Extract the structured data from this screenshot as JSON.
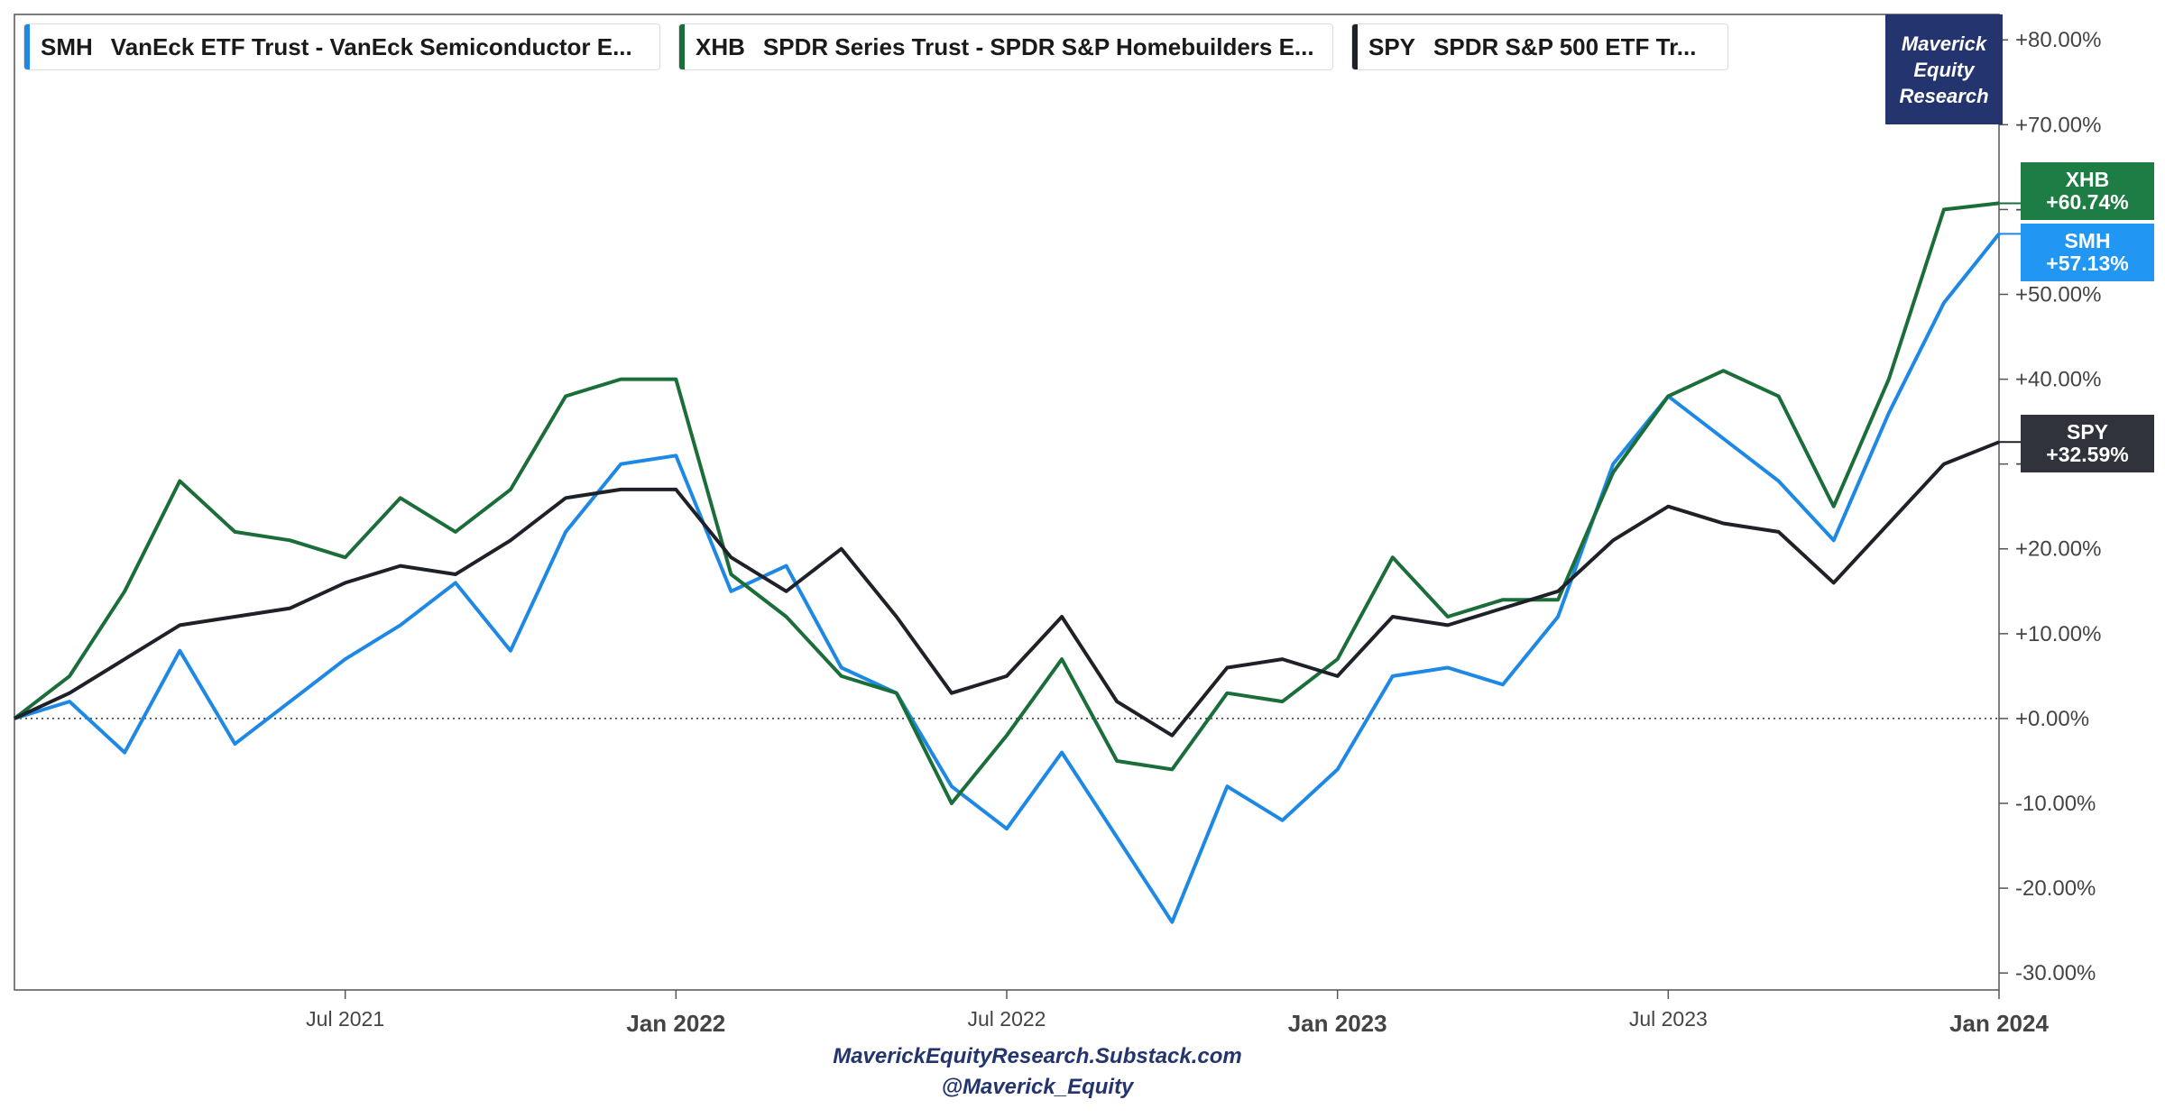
{
  "legend": [
    {
      "ticker": "SMH",
      "name": "VanEck ETF Trust - VanEck Semiconductor E...",
      "color": "#1e88e5"
    },
    {
      "ticker": "XHB",
      "name": "SPDR Series Trust - SPDR S&P Homebuilders E...",
      "color": "#1b6e3a"
    },
    {
      "ticker": "SPY",
      "name": "SPDR S&P 500 ETF Tr...",
      "color": "#1f2128"
    }
  ],
  "brand": {
    "line1": "Maverick",
    "line2": "Equity",
    "line3": "Research"
  },
  "badges": {
    "xhb": {
      "ticker": "XHB",
      "value": "+60.74%",
      "color": "#1e7c45"
    },
    "smh": {
      "ticker": "SMH",
      "value": "+57.13%",
      "color": "#2196f3"
    },
    "spy": {
      "ticker": "SPY",
      "value": "+32.59%",
      "color": "#30333b"
    }
  },
  "footer": {
    "line1": "MaverickEquityResearch.Substack.com",
    "line2": "@Maverick_Equity"
  },
  "chart_data": {
    "type": "line",
    "x_unit": "month",
    "xlim": [
      "2021-01",
      "2024-01"
    ],
    "ylim": [
      -32,
      83
    ],
    "y_ticks": [
      80,
      70,
      60,
      50,
      40,
      30,
      20,
      10,
      0,
      -10,
      -20,
      -30
    ],
    "y_tick_labels": [
      "+80.00%",
      "+70.00%",
      "+60.00%",
      "+50.00%",
      "+40.00%",
      "+30.00%",
      "+20.00%",
      "+10.00%",
      "+0.00%",
      "-10.00%",
      "-20.00%",
      "-30.00%"
    ],
    "x_ticks": [
      {
        "x": "2021-07",
        "label": "Jul 2021",
        "bold": false
      },
      {
        "x": "2022-01",
        "label": "Jan 2022",
        "bold": true
      },
      {
        "x": "2022-07",
        "label": "Jul 2022",
        "bold": false
      },
      {
        "x": "2023-01",
        "label": "Jan 2023",
        "bold": true
      },
      {
        "x": "2023-07",
        "label": "Jul 2023",
        "bold": false
      },
      {
        "x": "2024-01",
        "label": "Jan 2024",
        "bold": true
      }
    ],
    "zero_line": "dotted",
    "series": [
      {
        "name": "SMH",
        "color": "#1e88e5",
        "points": [
          [
            "2021-01",
            0
          ],
          [
            "2021-02",
            2
          ],
          [
            "2021-03",
            -4
          ],
          [
            "2021-04",
            8
          ],
          [
            "2021-05",
            -3
          ],
          [
            "2021-06",
            2
          ],
          [
            "2021-07",
            7
          ],
          [
            "2021-08",
            11
          ],
          [
            "2021-09",
            16
          ],
          [
            "2021-10",
            8
          ],
          [
            "2021-11",
            22
          ],
          [
            "2021-12",
            30
          ],
          [
            "2022-01",
            31
          ],
          [
            "2022-02",
            15
          ],
          [
            "2022-03",
            18
          ],
          [
            "2022-04",
            6
          ],
          [
            "2022-05",
            3
          ],
          [
            "2022-06",
            -8
          ],
          [
            "2022-07",
            -13
          ],
          [
            "2022-08",
            -4
          ],
          [
            "2022-09",
            -14
          ],
          [
            "2022-10",
            -24
          ],
          [
            "2022-11",
            -8
          ],
          [
            "2022-12",
            -12
          ],
          [
            "2023-01",
            -6
          ],
          [
            "2023-02",
            5
          ],
          [
            "2023-03",
            6
          ],
          [
            "2023-04",
            4
          ],
          [
            "2023-05",
            12
          ],
          [
            "2023-06",
            30
          ],
          [
            "2023-07",
            38
          ],
          [
            "2023-08",
            33
          ],
          [
            "2023-09",
            28
          ],
          [
            "2023-10",
            21
          ],
          [
            "2023-11",
            36
          ],
          [
            "2023-12",
            49
          ],
          [
            "2024-01",
            57.13
          ]
        ]
      },
      {
        "name": "XHB",
        "color": "#1b6e3a",
        "points": [
          [
            "2021-01",
            0
          ],
          [
            "2021-02",
            5
          ],
          [
            "2021-03",
            15
          ],
          [
            "2021-04",
            28
          ],
          [
            "2021-05",
            22
          ],
          [
            "2021-06",
            21
          ],
          [
            "2021-07",
            19
          ],
          [
            "2021-08",
            26
          ],
          [
            "2021-09",
            22
          ],
          [
            "2021-10",
            27
          ],
          [
            "2021-11",
            38
          ],
          [
            "2021-12",
            40
          ],
          [
            "2022-01",
            40
          ],
          [
            "2022-02",
            17
          ],
          [
            "2022-03",
            12
          ],
          [
            "2022-04",
            5
          ],
          [
            "2022-05",
            3
          ],
          [
            "2022-06",
            -10
          ],
          [
            "2022-07",
            -2
          ],
          [
            "2022-08",
            7
          ],
          [
            "2022-09",
            -5
          ],
          [
            "2022-10",
            -6
          ],
          [
            "2022-11",
            3
          ],
          [
            "2022-12",
            2
          ],
          [
            "2023-01",
            7
          ],
          [
            "2023-02",
            19
          ],
          [
            "2023-03",
            12
          ],
          [
            "2023-04",
            14
          ],
          [
            "2023-05",
            14
          ],
          [
            "2023-06",
            29
          ],
          [
            "2023-07",
            38
          ],
          [
            "2023-08",
            41
          ],
          [
            "2023-09",
            38
          ],
          [
            "2023-10",
            25
          ],
          [
            "2023-11",
            40
          ],
          [
            "2023-12",
            60
          ],
          [
            "2024-01",
            60.74
          ]
        ]
      },
      {
        "name": "SPY",
        "color": "#1f2128",
        "points": [
          [
            "2021-01",
            0
          ],
          [
            "2021-02",
            3
          ],
          [
            "2021-03",
            7
          ],
          [
            "2021-04",
            11
          ],
          [
            "2021-05",
            12
          ],
          [
            "2021-06",
            13
          ],
          [
            "2021-07",
            16
          ],
          [
            "2021-08",
            18
          ],
          [
            "2021-09",
            17
          ],
          [
            "2021-10",
            21
          ],
          [
            "2021-11",
            26
          ],
          [
            "2021-12",
            27
          ],
          [
            "2022-01",
            27
          ],
          [
            "2022-02",
            19
          ],
          [
            "2022-03",
            15
          ],
          [
            "2022-04",
            20
          ],
          [
            "2022-05",
            12
          ],
          [
            "2022-06",
            3
          ],
          [
            "2022-07",
            5
          ],
          [
            "2022-08",
            12
          ],
          [
            "2022-09",
            2
          ],
          [
            "2022-10",
            -2
          ],
          [
            "2022-11",
            6
          ],
          [
            "2022-12",
            7
          ],
          [
            "2023-01",
            5
          ],
          [
            "2023-02",
            12
          ],
          [
            "2023-03",
            11
          ],
          [
            "2023-04",
            13
          ],
          [
            "2023-05",
            15
          ],
          [
            "2023-06",
            21
          ],
          [
            "2023-07",
            25
          ],
          [
            "2023-08",
            23
          ],
          [
            "2023-09",
            22
          ],
          [
            "2023-10",
            16
          ],
          [
            "2023-11",
            23
          ],
          [
            "2023-12",
            30
          ],
          [
            "2024-01",
            32.59
          ]
        ]
      }
    ]
  }
}
